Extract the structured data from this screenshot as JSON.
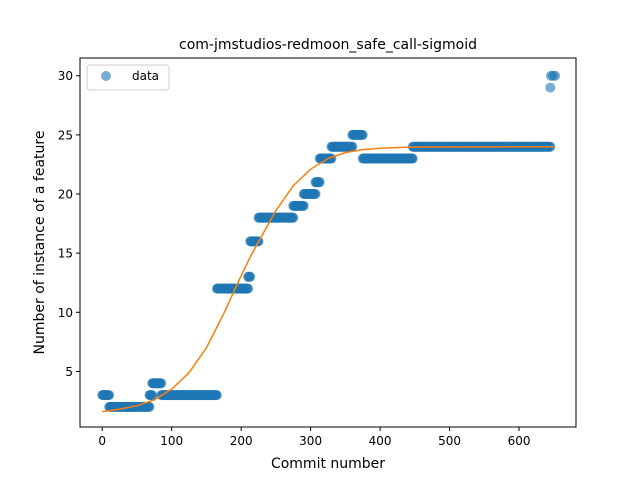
{
  "chart_data": {
    "type": "scatter",
    "title": "com-jmstudios-redmoon_safe_call-sigmoid",
    "xlabel": "Commit number",
    "ylabel": "Number of instance of a feature",
    "xlim": [
      -32,
      682
    ],
    "ylim": [
      0.3,
      31.5
    ],
    "xticks": [
      0,
      100,
      200,
      300,
      400,
      500,
      600
    ],
    "yticks": [
      5,
      10,
      15,
      20,
      25,
      30
    ],
    "grid": false,
    "legend": {
      "position": "top-left",
      "entries": [
        "data"
      ]
    },
    "series": [
      {
        "name": "data",
        "kind": "scatter",
        "color": "#1f77b4",
        "segments": [
          {
            "x_start": 0,
            "x_end": 10,
            "y": 3
          },
          {
            "x_start": 10,
            "x_end": 68,
            "y": 2
          },
          {
            "x_start": 68,
            "x_end": 72,
            "y": 3
          },
          {
            "x_start": 72,
            "x_end": 85,
            "y": 4
          },
          {
            "x_start": 85,
            "x_end": 165,
            "y": 3
          },
          {
            "x_start": 165,
            "x_end": 210,
            "y": 12
          },
          {
            "x_start": 210,
            "x_end": 213,
            "y": 13
          },
          {
            "x_start": 213,
            "x_end": 225,
            "y": 16
          },
          {
            "x_start": 225,
            "x_end": 275,
            "y": 18
          },
          {
            "x_start": 275,
            "x_end": 290,
            "y": 19
          },
          {
            "x_start": 290,
            "x_end": 307,
            "y": 20
          },
          {
            "x_start": 307,
            "x_end": 313,
            "y": 21
          },
          {
            "x_start": 313,
            "x_end": 330,
            "y": 23
          },
          {
            "x_start": 330,
            "x_end": 360,
            "y": 24
          },
          {
            "x_start": 360,
            "x_end": 375,
            "y": 25
          },
          {
            "x_start": 375,
            "x_end": 447,
            "y": 23
          },
          {
            "x_start": 447,
            "x_end": 645,
            "y": 24
          }
        ],
        "points": [
          {
            "x": 645,
            "y": 29
          },
          {
            "x": 646,
            "y": 30
          },
          {
            "x": 649,
            "y": 30
          },
          {
            "x": 652,
            "y": 30
          }
        ]
      },
      {
        "name": "",
        "kind": "line",
        "color": "#ff7f0e",
        "x": [
          0,
          25,
          50,
          75,
          100,
          125,
          150,
          175,
          200,
          215,
          230,
          250,
          275,
          300,
          325,
          350,
          375,
          400,
          425,
          450,
          500,
          550,
          600,
          650
        ],
        "y": [
          1.6,
          1.8,
          2.1,
          2.6,
          3.5,
          4.9,
          7.0,
          9.9,
          13.1,
          14.9,
          16.5,
          18.6,
          20.7,
          22.1,
          23.0,
          23.5,
          23.75,
          23.87,
          23.93,
          23.96,
          23.98,
          23.99,
          24.0,
          24.0
        ]
      }
    ]
  }
}
